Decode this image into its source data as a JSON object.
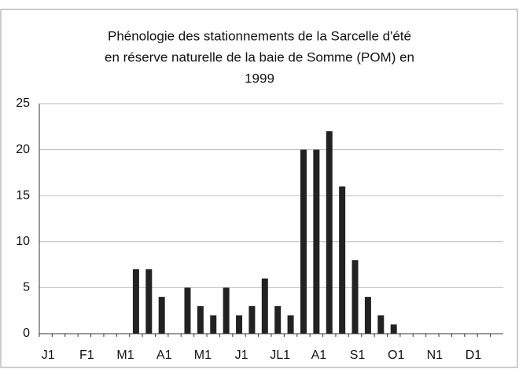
{
  "chart_data": {
    "type": "bar",
    "title": [
      "Phénologie des stationnements de la Sarcelle d'été",
      "en réserve naturelle de la baie de Somme (POM) en",
      "1999"
    ],
    "categories": [
      "J1",
      null,
      null,
      "F1",
      null,
      null,
      "M1",
      null,
      null,
      "A1",
      null,
      null,
      "M1",
      null,
      null,
      "J1",
      null,
      null,
      "JL1",
      null,
      null,
      "A1",
      null,
      null,
      "S1",
      null,
      null,
      "O1",
      null,
      null,
      "N1",
      null,
      null,
      "D1",
      null,
      null
    ],
    "values": [
      0,
      0,
      0,
      0,
      0,
      0,
      0,
      7,
      7,
      4,
      0,
      5,
      3,
      2,
      5,
      2,
      3,
      6,
      3,
      2,
      20,
      20,
      22,
      16,
      8,
      4,
      2,
      1,
      0,
      0,
      0,
      0,
      0,
      0,
      0,
      0
    ],
    "color": "#222222",
    "ylim": [
      0,
      25
    ],
    "yticks": [
      0,
      5,
      10,
      15,
      20,
      25
    ],
    "grid": true
  }
}
